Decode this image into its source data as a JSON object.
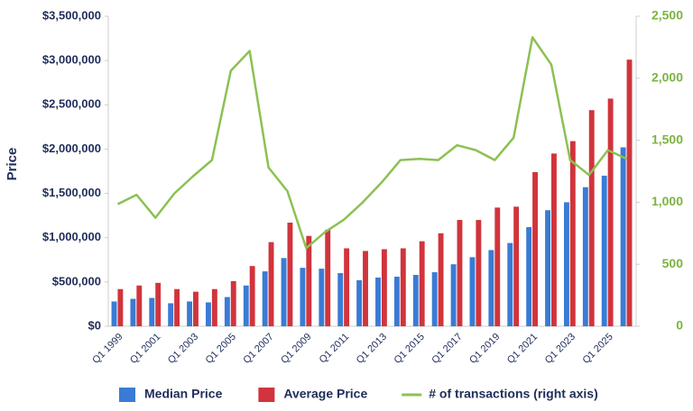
{
  "chart_data": {
    "type": "bar_line",
    "y_label": "Price",
    "categories": [
      "Q1 1999",
      null,
      "Q1 2001",
      null,
      "Q1 2003",
      null,
      "Q1 2005",
      null,
      "Q1 2007",
      null,
      "Q1 2009",
      null,
      "Q1 2011",
      null,
      "Q1 2013",
      null,
      "Q1 2015",
      null,
      "Q1 2017",
      null,
      "Q1 2019",
      null,
      "Q1 2021",
      null,
      "Q1 2023",
      null,
      "Q1 2025",
      null
    ],
    "series": [
      {
        "name": "Median Price",
        "color": "#3a7bd5",
        "type": "bar",
        "values": [
          280000,
          310000,
          320000,
          260000,
          280000,
          270000,
          330000,
          460000,
          620000,
          770000,
          660000,
          650000,
          600000,
          520000,
          550000,
          560000,
          580000,
          610000,
          700000,
          780000,
          860000,
          940000,
          1120000,
          1310000,
          1400000,
          1570000,
          1700000,
          2020000
        ]
      },
      {
        "name": "Average Price",
        "color": "#d1343c",
        "type": "bar",
        "values": [
          420000,
          460000,
          490000,
          420000,
          390000,
          420000,
          510000,
          680000,
          950000,
          1170000,
          1020000,
          1090000,
          880000,
          850000,
          870000,
          880000,
          960000,
          1050000,
          1200000,
          1200000,
          1340000,
          1350000,
          1740000,
          1950000,
          2090000,
          2440000,
          2570000,
          3010000
        ]
      },
      {
        "name": "# of transactions (right axis)",
        "color": "#8cc152",
        "type": "line",
        "axis": "y2",
        "values": [
          985,
          1060,
          875,
          1070,
          1210,
          1340,
          2060,
          2220,
          1280,
          1090,
          630,
          760,
          860,
          1000,
          1160,
          1340,
          1350,
          1340,
          1460,
          1420,
          1340,
          1520,
          2330,
          2110,
          1340,
          1220,
          1420,
          1350
        ]
      }
    ],
    "ylim": [
      0,
      3500000
    ],
    "yticks": [
      {
        "value": 0,
        "label": "$0"
      },
      {
        "value": 500000,
        "label": "$500,000"
      },
      {
        "value": 1000000,
        "label": "$1,000,000"
      },
      {
        "value": 1500000,
        "label": "$1,500,000"
      },
      {
        "value": 2000000,
        "label": "$2,000,000"
      },
      {
        "value": 2500000,
        "label": "$2,500,000"
      },
      {
        "value": 3000000,
        "label": "$3,000,000"
      },
      {
        "value": 3500000,
        "label": "$3,500,000"
      }
    ],
    "y2lim": [
      0,
      2500
    ],
    "y2ticks": [
      0,
      500,
      {
        "value": 1000,
        "label": "1,000"
      },
      {
        "value": 1500,
        "label": "1,500"
      },
      {
        "value": 2000,
        "label": "2,000"
      },
      {
        "value": 2500,
        "label": "2,500"
      }
    ],
    "legend": "bottom"
  }
}
